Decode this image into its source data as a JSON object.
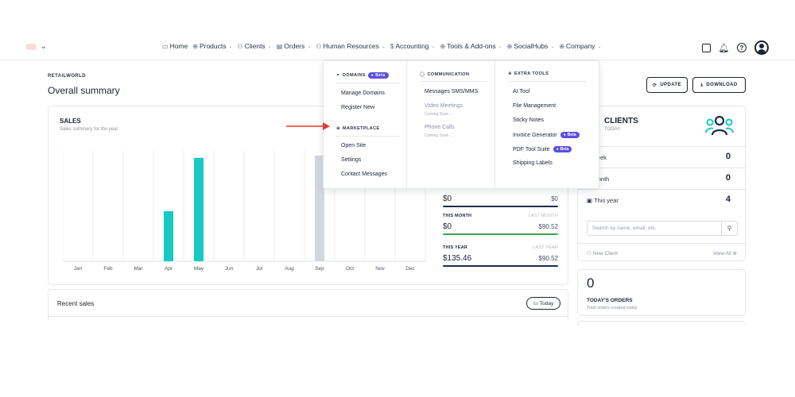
{
  "nav": {
    "items": [
      {
        "icon": "monitor-icon",
        "glyph": "▭",
        "label": "Home",
        "chev": false
      },
      {
        "icon": "products-icon",
        "glyph": "⊕",
        "label": "Products",
        "chev": true
      },
      {
        "icon": "clients-icon",
        "glyph": "⚇",
        "label": "Clients",
        "chev": true
      },
      {
        "icon": "orders-icon",
        "glyph": "▤",
        "label": "Orders",
        "chev": true
      },
      {
        "icon": "hr-icon",
        "glyph": "⚇",
        "label": "Human Resources",
        "chev": true
      },
      {
        "icon": "dollar-icon",
        "glyph": "$",
        "label": "Accounting",
        "chev": true
      },
      {
        "icon": "tools-icon",
        "glyph": "⊕",
        "label": "Tools & Add-ons",
        "chev": true
      },
      {
        "icon": "socialhubs-icon",
        "glyph": "⊕",
        "label": "SocialHubs",
        "chev": true
      },
      {
        "icon": "company-icon",
        "glyph": "⊕",
        "label": "Company",
        "chev": true
      }
    ]
  },
  "header": {
    "brand": "RETAILWORLD",
    "title": "Overall summary",
    "update_label": "UPDATE",
    "download_label": "DOWNLOAD"
  },
  "sales": {
    "title": "SALES",
    "subtitle": "Sales summary for the year",
    "stats": [
      {
        "label": "",
        "last_label": "",
        "value": "$0",
        "prev": "$0",
        "color": "#1f2d4d"
      },
      {
        "label": "THIS MONTH",
        "last_label": "LAST MONTH",
        "value": "$0",
        "prev": "$90.52",
        "color": "#3aa655"
      },
      {
        "label": "THIS YEAR",
        "last_label": "LAST YEAR",
        "value": "$135.46",
        "prev": "$90.52",
        "color": "#1f2d4d"
      }
    ]
  },
  "chart_data": {
    "type": "bar",
    "categories": [
      "Jan",
      "Feb",
      "Mar",
      "Apr",
      "May",
      "Jun",
      "Jul",
      "Aug",
      "Sep",
      "Oct",
      "Nov",
      "Dec"
    ],
    "series": [
      {
        "values": [
          0,
          0,
          0,
          45,
          93,
          0,
          0,
          0,
          0,
          0,
          0,
          0
        ],
        "color": "#17c9c3"
      },
      {
        "values": [
          0,
          0,
          0,
          0,
          0,
          0,
          0,
          0,
          95,
          0,
          0,
          0
        ],
        "color": "#d4d7de"
      }
    ],
    "title": "",
    "xlabel": "",
    "ylabel": "",
    "ylim": [
      0,
      100
    ],
    "grid": true
  },
  "recent": {
    "title": "Recent sales",
    "today_label": "Today"
  },
  "clients": {
    "title": "CLIENTS",
    "subtitle": "TODAY",
    "rows": [
      {
        "label": "is week",
        "value": "0"
      },
      {
        "label": "is month",
        "value": "0"
      },
      {
        "label": "This year",
        "value": "4"
      }
    ],
    "search_placeholder": "Search by name, email, etc.",
    "new_client": "New Client",
    "view_all": "View All"
  },
  "orders": {
    "count": "0",
    "label": "TODAY'S ORDERS",
    "sub": "Total orders created today"
  },
  "dropdown": {
    "domains": {
      "title": "DOMAINS",
      "beta": "Beta",
      "items": [
        "Manage Domains",
        "Register New"
      ]
    },
    "marketplace": {
      "title": "MARKETPLACE",
      "items": [
        "Open Site",
        "Settings",
        "Contact Messages"
      ]
    },
    "communication": {
      "title": "COMMUNICATION",
      "items": [
        {
          "label": "Messages SMS/MMS",
          "soon": ""
        },
        {
          "label": "Video Meetings",
          "soon": "Coming Soon ..."
        },
        {
          "label": "Phone Calls",
          "soon": "Coming Soon ..."
        }
      ]
    },
    "extra": {
      "title": "EXTRA TOOLS",
      "items": [
        {
          "label": "AI Tool",
          "beta": ""
        },
        {
          "label": "File Management",
          "beta": ""
        },
        {
          "label": "Sticky Notes",
          "beta": ""
        },
        {
          "label": "Invoice Generator",
          "beta": "Beta"
        },
        {
          "label": "PDF Tool Suite",
          "beta": "Beta"
        },
        {
          "label": "Shipping Labels",
          "beta": ""
        }
      ]
    }
  },
  "colors": {
    "accent": "#5b4fe0",
    "teal": "#17c9c3",
    "arrow": "#e53935"
  }
}
